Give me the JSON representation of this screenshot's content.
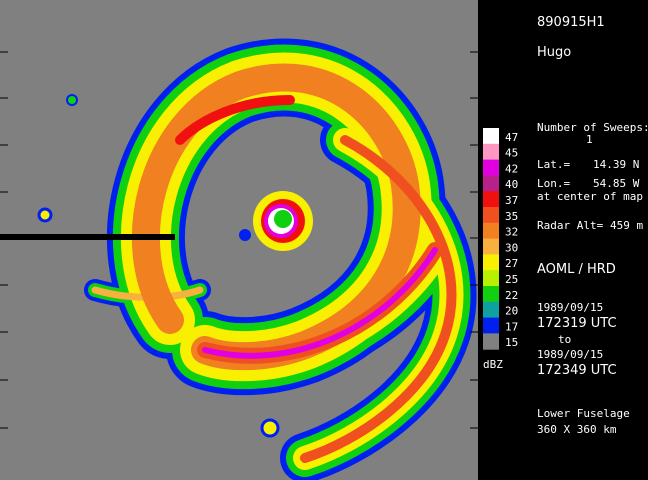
{
  "header": {
    "flight": "890915H1",
    "storm": "Hugo"
  },
  "info": {
    "sweeps_label": "Number of Sweeps:",
    "sweeps": "1",
    "lat_label": "Lat.=",
    "lat": "14.39 N",
    "lon_label": "Lon.=",
    "lon": "54.85 W",
    "center_note": "at center of map",
    "alt_label": "Radar Alt=",
    "alt": "459 m",
    "org": "AOML / HRD",
    "start_date": "1989/09/15",
    "start_time": "172319 UTC",
    "to": "to",
    "end_date": "1989/09/15",
    "end_time": "172349 UTC",
    "radar": "Lower Fuselage",
    "extent": "360 X 360 km"
  },
  "legend": {
    "unit": "dBZ",
    "items": [
      {
        "label": "47",
        "color": "#ffffff"
      },
      {
        "label": "45",
        "color": "#ff98c0"
      },
      {
        "label": "42",
        "color": "#e000e0"
      },
      {
        "label": "40",
        "color": "#b8208c"
      },
      {
        "label": "37",
        "color": "#f01010"
      },
      {
        "label": "35",
        "color": "#f05020"
      },
      {
        "label": "32",
        "color": "#f08020"
      },
      {
        "label": "30",
        "color": "#f8b040"
      },
      {
        "label": "27",
        "color": "#f8f000"
      },
      {
        "label": "25",
        "color": "#b8f000"
      },
      {
        "label": "22",
        "color": "#10d010"
      },
      {
        "label": "20",
        "color": "#10a0a0"
      },
      {
        "label": "17",
        "color": "#0020f0"
      },
      {
        "label": "15",
        "color": "#808080"
      }
    ]
  }
}
